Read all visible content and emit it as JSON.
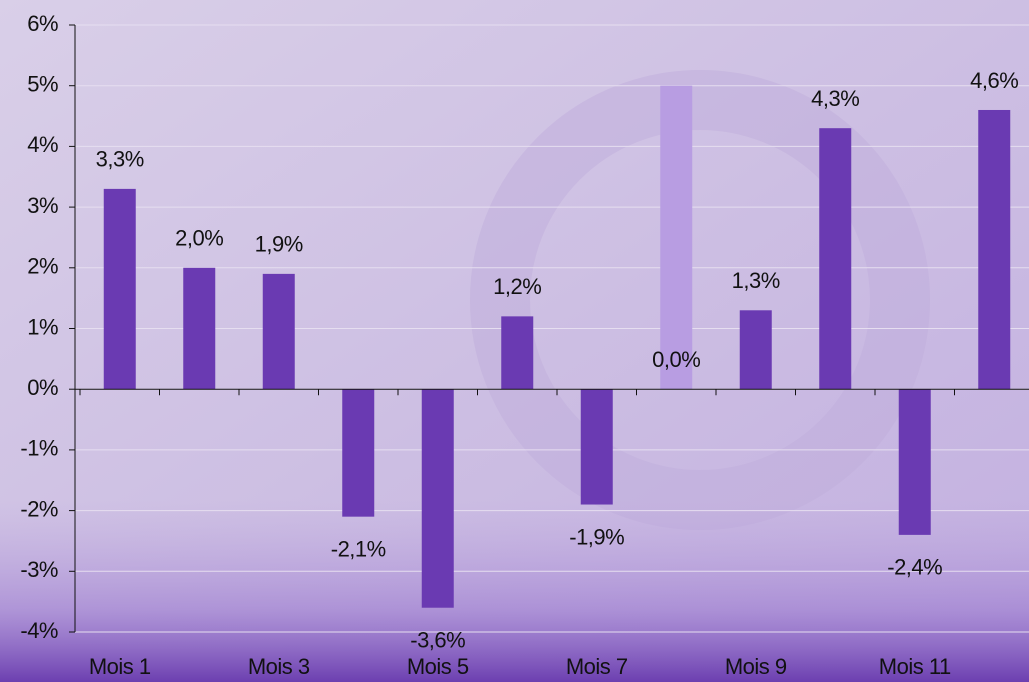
{
  "chart_data": {
    "type": "bar",
    "categories": [
      "Mois 1",
      null,
      "Mois 3",
      null,
      "Mois 5",
      null,
      "Mois 7",
      null,
      "Mois 9",
      null,
      "Mois 11",
      null
    ],
    "series": [
      {
        "color": "#6a3ab2",
        "values": [
          3.3,
          2.0,
          1.9,
          -2.1,
          -3.6,
          1.2,
          -1.9,
          0.0,
          1.3,
          4.3,
          -2.4,
          4.6
        ],
        "value_labels": [
          "3,3%",
          "2,0%",
          "1,9%",
          "-2,1%",
          "-3,6%",
          "1,2%",
          "-1,9%",
          "0,0%",
          "1,3%",
          "4,3%",
          "-2,4%",
          "4,6%"
        ]
      },
      {
        "color": "#b89de2",
        "values": [
          null,
          null,
          null,
          null,
          null,
          null,
          null,
          5,
          null,
          null,
          null,
          null
        ]
      }
    ],
    "ylim": [
      -4,
      6
    ],
    "yticks": [
      {
        "value": -4,
        "label": "-4%"
      },
      {
        "value": -3,
        "label": "-3%"
      },
      {
        "value": -2,
        "label": "-2%"
      },
      {
        "value": -1,
        "label": "-1%"
      },
      {
        "value": 0,
        "label": "0%"
      },
      {
        "value": 1,
        "label": "1%"
      },
      {
        "value": 2,
        "label": "2%"
      },
      {
        "value": 3,
        "label": "3%"
      },
      {
        "value": 4,
        "label": "4%"
      },
      {
        "value": 5,
        "label": "5%"
      },
      {
        "value": 6,
        "label": "6%"
      }
    ],
    "grid": true
  }
}
